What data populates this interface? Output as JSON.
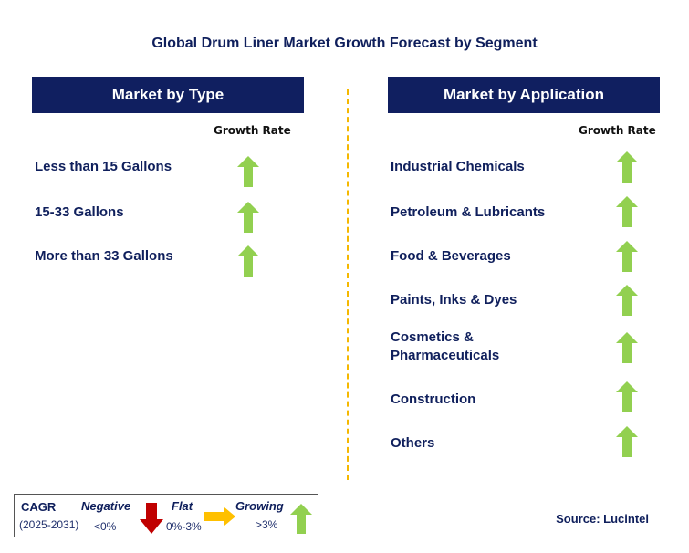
{
  "title": "Global Drum Liner Market Growth Forecast by Segment",
  "left": {
    "header": "Market by Type",
    "growth_label": "Growth Rate",
    "items": [
      {
        "label": "Less than 15 Gallons",
        "trend": "growing"
      },
      {
        "label": "15-33 Gallons",
        "trend": "growing"
      },
      {
        "label": "More than 33 Gallons",
        "trend": "growing"
      }
    ]
  },
  "right": {
    "header": "Market by Application",
    "growth_label": "Growth Rate",
    "items": [
      {
        "label": "Industrial Chemicals",
        "trend": "growing"
      },
      {
        "label": "Petroleum & Lubricants",
        "trend": "growing"
      },
      {
        "label": "Food & Beverages",
        "trend": "growing"
      },
      {
        "label": "Paints, Inks & Dyes",
        "trend": "growing"
      },
      {
        "label": "Cosmetics & Pharmaceuticals",
        "trend": "growing"
      },
      {
        "label": "Construction",
        "trend": "growing"
      },
      {
        "label": "Others",
        "trend": "growing"
      }
    ]
  },
  "legend": {
    "cagr": "CAGR",
    "period": "(2025-2031)",
    "negative": "Negative",
    "negative_range": "<0%",
    "flat": "Flat",
    "flat_range": "0%-3%",
    "growing": "Growing",
    "growing_range": ">3%"
  },
  "colors": {
    "growing": "#92d050",
    "negative": "#c00000",
    "flat": "#ffc000",
    "header": "#101f60",
    "divider": "#f5b800"
  },
  "source": "Source: Lucintel"
}
